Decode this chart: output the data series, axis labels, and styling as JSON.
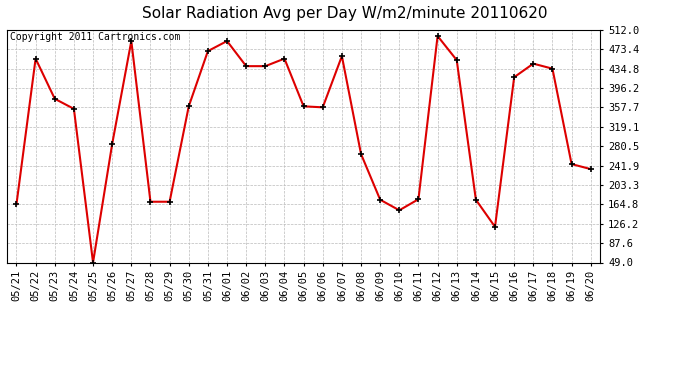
{
  "title": "Solar Radiation Avg per Day W/m2/minute 20110620",
  "copyright": "Copyright 2011 Cartronics.com",
  "x_labels": [
    "05/21",
    "05/22",
    "05/23",
    "05/24",
    "05/25",
    "05/26",
    "05/27",
    "05/28",
    "05/29",
    "05/30",
    "05/31",
    "06/01",
    "06/02",
    "06/03",
    "06/04",
    "06/05",
    "06/06",
    "06/07",
    "06/08",
    "06/09",
    "06/10",
    "06/11",
    "06/12",
    "06/13",
    "06/14",
    "06/15",
    "06/16",
    "06/17",
    "06/18",
    "06/19",
    "06/20"
  ],
  "y_values": [
    165,
    455,
    375,
    355,
    49,
    285,
    490,
    170,
    170,
    360,
    470,
    490,
    440,
    440,
    455,
    360,
    358,
    460,
    265,
    174,
    153,
    175,
    500,
    452,
    174,
    120,
    418,
    445,
    435,
    245,
    235
  ],
  "y_ticks": [
    49.0,
    87.6,
    126.2,
    164.8,
    203.3,
    241.9,
    280.5,
    319.1,
    357.7,
    396.2,
    434.8,
    473.4,
    512.0
  ],
  "y_tick_labels": [
    "49.0",
    "87.6",
    "126.2",
    "164.8",
    "203.3",
    "241.9",
    "280.5",
    "319.1",
    "357.7",
    "396.2",
    "434.8",
    "473.4",
    "512.0"
  ],
  "line_color": "#dd0000",
  "marker_color": "#000000",
  "bg_color": "#ffffff",
  "grid_color": "#bbbbbb",
  "title_fontsize": 11,
  "copyright_fontsize": 7,
  "tick_fontsize": 7.5,
  "ymin": 49.0,
  "ymax": 512.0
}
